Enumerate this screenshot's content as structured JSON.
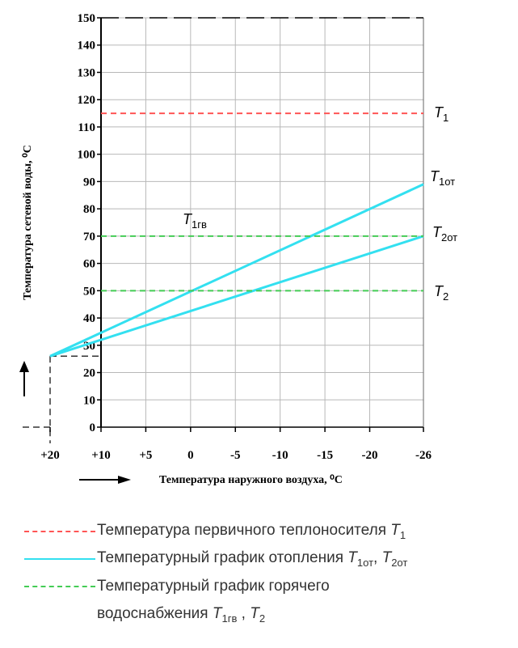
{
  "chart_data": {
    "type": "line",
    "xlabel": "Температура наружного воздуха",
    "xlabel_unit": ", ⁰С",
    "ylabel": "Температура сетевой воды",
    "ylabel_unit": ", ⁰С",
    "x_ticks": [
      "+20",
      "+10",
      "+5",
      "0",
      "-5",
      "-10",
      "-15",
      "-20",
      "-26"
    ],
    "x_tick_values": [
      20,
      10,
      5,
      0,
      -5,
      -10,
      -15,
      -20,
      -26
    ],
    "y_ticks": [
      0,
      10,
      20,
      30,
      40,
      50,
      60,
      70,
      80,
      90,
      100,
      110,
      120,
      130,
      140,
      150
    ],
    "xlim": [
      10,
      -26
    ],
    "ylim": [
      0,
      150
    ],
    "grid": true,
    "colors": {
      "primary": "#ff5555",
      "heating": "#33e0f0",
      "hot_water": "#44cc55"
    },
    "series": [
      {
        "name": "T1",
        "style": "dashed",
        "color": "#ff5555",
        "x": [
          10,
          -26
        ],
        "y": [
          115,
          115
        ],
        "label": "T",
        "label_sub": "1"
      },
      {
        "name": "T1от",
        "style": "solid",
        "color": "#33e0f0",
        "x": [
          20,
          -26
        ],
        "y": [
          26,
          89
        ],
        "label": "T",
        "label_sub": "1от"
      },
      {
        "name": "T2от",
        "style": "solid",
        "color": "#33e0f0",
        "x": [
          20,
          -26
        ],
        "y": [
          26,
          70
        ],
        "label": "T",
        "label_sub": "2от"
      },
      {
        "name": "T1гв",
        "style": "dashed",
        "color": "#44cc55",
        "x": [
          10,
          -26
        ],
        "y": [
          70,
          70
        ],
        "label": "T",
        "label_sub": "1гв"
      },
      {
        "name": "T2",
        "style": "dashed",
        "color": "#44cc55",
        "x": [
          10,
          -26
        ],
        "y": [
          50,
          50
        ],
        "label": "T",
        "label_sub": "2"
      }
    ]
  },
  "legend": [
    {
      "color": "#ff5555",
      "style": "dashed",
      "text": "Температура первичного теплоносителя ",
      "sym": "T",
      "sub": "1",
      "tail": ""
    },
    {
      "color": "#33e0f0",
      "style": "solid",
      "text": "Температурный график отопления ",
      "sym": "T",
      "sub": "1от",
      "sep": ", ",
      "sym2": "T",
      "sub2": "2от"
    },
    {
      "color": "#44cc55",
      "style": "dashed",
      "text": "Температурный график горячего"
    }
  ],
  "legend_cont": {
    "text": "водоснабжения ",
    "sym": "T",
    "sub": "1гв",
    "sep": " , ",
    "sym2": "T",
    "sub2": "2"
  }
}
